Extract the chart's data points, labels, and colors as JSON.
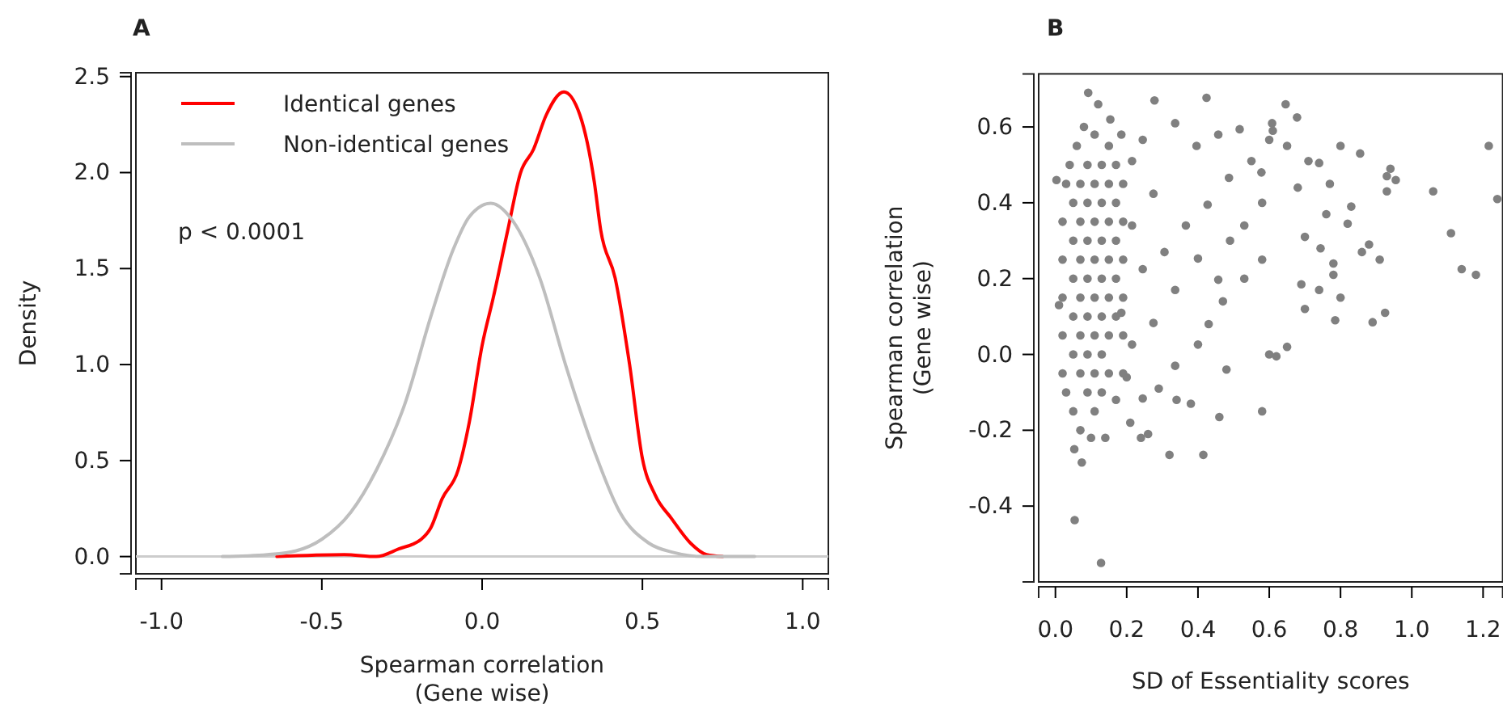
{
  "chart_data": [
    {
      "type": "line",
      "title": "A",
      "xlabel": "Spearman correlation\n(Gene wise)",
      "ylabel": "Density",
      "xlim": [
        -1.08,
        1.08
      ],
      "ylim": [
        -0.09,
        2.52
      ],
      "xticks": [
        {
          "value": -1,
          "label": "-1.0"
        },
        {
          "value": -0.5,
          "label": "-0.5"
        },
        {
          "value": 0,
          "label": "0.0"
        },
        {
          "value": 0.5,
          "label": "0.5"
        },
        {
          "value": 1,
          "label": "1.0"
        }
      ],
      "yticks": [
        {
          "value": 0,
          "label": "0.0"
        },
        {
          "value": 0.5,
          "label": "0.5"
        },
        {
          "value": 1,
          "label": "1.0"
        },
        {
          "value": 1.5,
          "label": "1.5"
        },
        {
          "value": 2,
          "label": "2.0"
        },
        {
          "value": 2.5,
          "label": "2.5"
        }
      ],
      "legend": "top left",
      "annotations": [
        "p < 0.0001"
      ],
      "ref_lines": [
        {
          "axis": "y",
          "value": 0,
          "color": "#cccccc"
        }
      ],
      "series": [
        {
          "name": "Identical genes",
          "color": "#ff0000",
          "x": [
            -0.64,
            -0.43,
            -0.33,
            -0.26,
            -0.19,
            -0.16,
            -0.125,
            -0.075,
            -0.04,
            0,
            0.035,
            0.08,
            0.12,
            0.16,
            0.2,
            0.255,
            0.305,
            0.35,
            0.37,
            0.415,
            0.46,
            0.5,
            0.54,
            0.59,
            0.65,
            0.7,
            0.75
          ],
          "values": [
            0,
            0.01,
            0,
            0.04,
            0.09,
            0.15,
            0.3,
            0.45,
            0.7,
            1.1,
            1.35,
            1.7,
            2.0,
            2.12,
            2.3,
            2.42,
            2.3,
            1.95,
            1.7,
            1.45,
            1.0,
            0.51,
            0.32,
            0.2,
            0.07,
            0.01,
            0
          ]
        },
        {
          "name": "Non-identical genes",
          "color": "#bebebe",
          "x": [
            -0.81,
            -0.67,
            -0.58,
            -0.5,
            -0.41,
            -0.33,
            -0.24,
            -0.16,
            -0.09,
            -0.04,
            0.027,
            0.095,
            0.18,
            0.26,
            0.35,
            0.43,
            0.52,
            0.6,
            0.69,
            0.85
          ],
          "values": [
            0,
            0.01,
            0.03,
            0.09,
            0.23,
            0.45,
            0.8,
            1.25,
            1.6,
            1.77,
            1.84,
            1.75,
            1.45,
            1.0,
            0.55,
            0.23,
            0.07,
            0.02,
            0,
            0
          ]
        }
      ]
    },
    {
      "type": "scatter",
      "title": "B",
      "xlabel": "SD of Essentiality scores",
      "ylabel": "Spearman correlation\n(Gene wise)",
      "xlim": [
        -0.047,
        1.255
      ],
      "ylim": [
        -0.6,
        0.74
      ],
      "marker": "circle",
      "xticks": [
        {
          "value": 0,
          "label": "0.0"
        },
        {
          "value": 0.2,
          "label": "0.2"
        },
        {
          "value": 0.4,
          "label": "0.4"
        },
        {
          "value": 0.6,
          "label": "0.6"
        },
        {
          "value": 0.8,
          "label": "0.8"
        },
        {
          "value": 1,
          "label": "1.0"
        },
        {
          "value": 1.2,
          "label": "1.2"
        }
      ],
      "yticks": [
        {
          "value": -0.4,
          "label": "-0.4"
        },
        {
          "value": -0.2,
          "label": "-0.2"
        },
        {
          "value": 0,
          "label": "0.0"
        },
        {
          "value": 0.2,
          "label": "0.2"
        },
        {
          "value": 0.4,
          "label": "0.4"
        },
        {
          "value": 0.6,
          "label": "0.6"
        }
      ],
      "series": [
        {
          "color": "#808080",
          "x": [
            1.24,
            1.216,
            1.11,
            1.14,
            1.18,
            1.06,
            0.91,
            0.925,
            0.89,
            0.93,
            0.94,
            0.955,
            0.93,
            0.855,
            0.8,
            0.83,
            0.82,
            0.88,
            0.86,
            0.8,
            0.785,
            0.78,
            0.78,
            0.7,
            0.69,
            0.74,
            0.646,
            0.678,
            0.608,
            0.61,
            0.65,
            0.62,
            0.6,
            0.58,
            0.46,
            0.415,
            0.32,
            0.24,
            0.26,
            0.14,
            0.054,
            0.128,
            0.074,
            0.053,
            0.424,
            0.278,
            0.092,
            0.12,
            0.003,
            0.01,
            0.48,
            0.38,
            0.34,
            0.21,
            0.7,
            0.744,
            0.76,
            0.71,
            0.74,
            0.77,
            0.68,
            0.65,
            0.6,
            0.55,
            0.58,
            0.53,
            0.49,
            0.58,
            0.53,
            0.47,
            0.43,
            0.4,
            0.336,
            0.29,
            0.245,
            0.2,
            0.457,
            0.396,
            0.336,
            0.517,
            0.578,
            0.487,
            0.427,
            0.366,
            0.306,
            0.4,
            0.457,
            0.336,
            0.275,
            0.215,
            0.185,
            0.245,
            0.215,
            0.275,
            0.215,
            0.185,
            0.154,
            0.245,
            0.02,
            0.02,
            0.02,
            0.02,
            0.02,
            0.03,
            0.03,
            0.04,
            0.05,
            0.05,
            0.05,
            0.05,
            0.05,
            0.05,
            0.06,
            0.07,
            0.07,
            0.07,
            0.07,
            0.07,
            0.07,
            0.07,
            0.08,
            0.09,
            0.09,
            0.09,
            0.09,
            0.09,
            0.09,
            0.09,
            0.1,
            0.11,
            0.11,
            0.11,
            0.11,
            0.11,
            0.11,
            0.11,
            0.11,
            0.13,
            0.13,
            0.13,
            0.13,
            0.13,
            0.13,
            0.13,
            0.15,
            0.15,
            0.15,
            0.15,
            0.15,
            0.15,
            0.15,
            0.17,
            0.17,
            0.17,
            0.17,
            0.17,
            0.17,
            0.19,
            0.19,
            0.19,
            0.19,
            0.19,
            0.19
          ],
          "values": [
            0.41,
            0.55,
            0.32,
            0.225,
            0.21,
            0.43,
            0.25,
            0.11,
            0.085,
            0.47,
            0.49,
            0.46,
            0.43,
            0.53,
            0.55,
            0.39,
            0.345,
            0.29,
            0.27,
            0.15,
            0.09,
            0.21,
            0.24,
            0.12,
            0.185,
            0.17,
            0.66,
            0.625,
            0.61,
            0.59,
            0.02,
            -0.005,
            0,
            -0.15,
            -0.165,
            -0.265,
            -0.265,
            -0.22,
            -0.21,
            -0.22,
            -0.437,
            -0.55,
            -0.285,
            -0.25,
            0.677,
            0.67,
            0.69,
            0.66,
            0.46,
            0.13,
            -0.04,
            -0.13,
            -0.12,
            -0.18,
            0.31,
            0.28,
            0.37,
            0.51,
            0.505,
            0.45,
            0.44,
            0.55,
            0.566,
            0.51,
            0.4,
            0.34,
            0.3,
            0.25,
            0.2,
            0.14,
            0.08,
            0.026,
            -0.03,
            -0.09,
            -0.116,
            -0.06,
            0.58,
            0.55,
            0.61,
            0.594,
            0.48,
            0.466,
            0.395,
            0.34,
            0.27,
            0.253,
            0.197,
            0.17,
            0.083,
            0.026,
            0.11,
            0.225,
            0.34,
            0.424,
            0.51,
            0.58,
            0.62,
            0.566,
            0.35,
            0.25,
            0.15,
            0.05,
            -0.05,
            0.45,
            -0.1,
            0.5,
            0.4,
            0.3,
            0.2,
            0.1,
            0,
            -0.15,
            0.55,
            0.45,
            0.35,
            0.25,
            0.15,
            0.05,
            -0.05,
            -0.2,
            0.6,
            0.5,
            0.4,
            0.3,
            0.2,
            0.1,
            0,
            -0.1,
            -0.22,
            0.58,
            0.45,
            0.35,
            0.25,
            0.15,
            0.05,
            -0.05,
            -0.15,
            0.5,
            0.4,
            0.3,
            0.2,
            0.1,
            0,
            -0.1,
            0.55,
            0.45,
            0.35,
            0.25,
            0.15,
            0.05,
            -0.05,
            0.5,
            0.4,
            0.3,
            0.2,
            0.1,
            -0.12,
            0.45,
            0.35,
            0.25,
            0.15,
            0.05,
            -0.05
          ]
        }
      ]
    }
  ]
}
